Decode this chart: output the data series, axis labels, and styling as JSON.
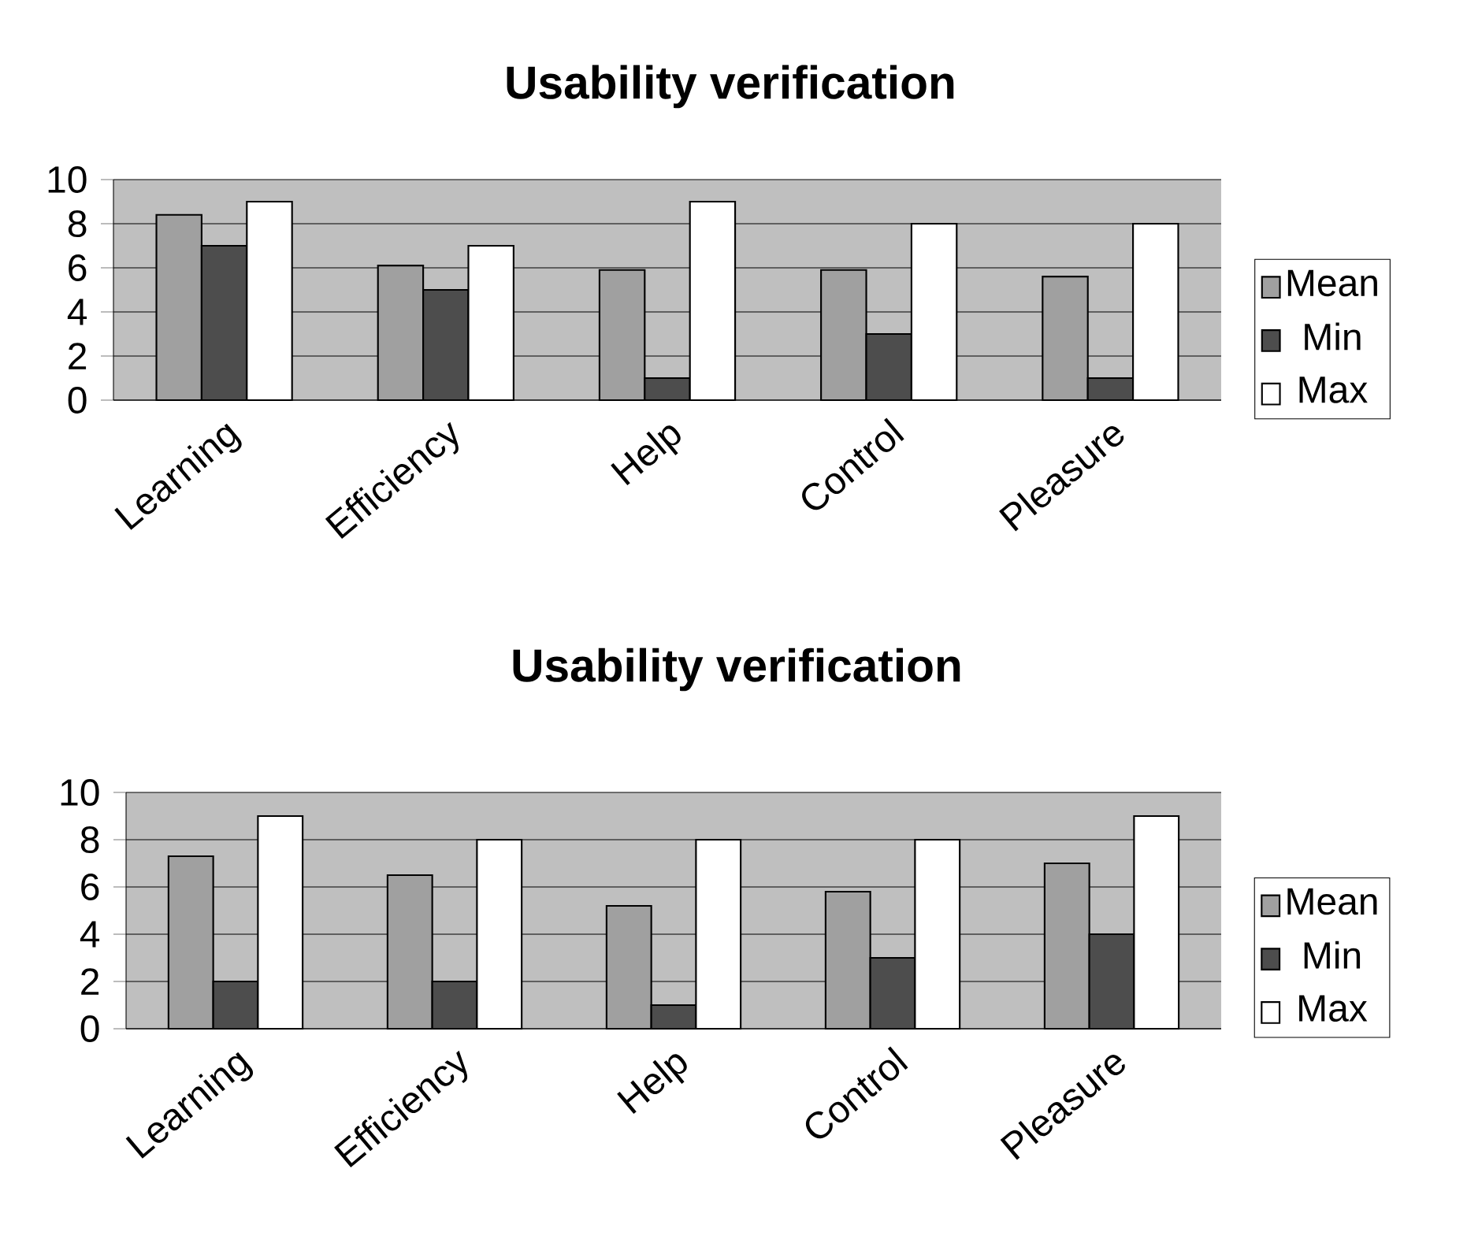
{
  "chart_data": [
    {
      "type": "bar",
      "title": "Usability verification",
      "categories": [
        "Learning",
        "Efficiency",
        "Help",
        "Control",
        "Pleasure"
      ],
      "series": [
        {
          "name": "Mean",
          "color": "#a0a0a0",
          "values": [
            8.4,
            6.1,
            5.9,
            5.9,
            5.6
          ]
        },
        {
          "name": "Min",
          "color": "#4d4d4d",
          "values": [
            7,
            5,
            1,
            3,
            1
          ]
        },
        {
          "name": "Max",
          "color": "#ffffff",
          "values": [
            9,
            7,
            9,
            8,
            8
          ]
        }
      ],
      "ylim": [
        0,
        10
      ],
      "yticks": [
        0,
        2,
        4,
        6,
        8,
        10
      ],
      "grid": "y",
      "legend": "right"
    },
    {
      "type": "bar",
      "title": "Usability verification",
      "categories": [
        "Learning",
        "Efficiency",
        "Help",
        "Control",
        "Pleasure"
      ],
      "series": [
        {
          "name": "Mean",
          "color": "#a0a0a0",
          "values": [
            7.3,
            6.5,
            5.2,
            5.8,
            7.0
          ]
        },
        {
          "name": "Min",
          "color": "#4d4d4d",
          "values": [
            2,
            2,
            1,
            3,
            4
          ]
        },
        {
          "name": "Max",
          "color": "#ffffff",
          "values": [
            9,
            8,
            8,
            8,
            9
          ]
        }
      ],
      "ylim": [
        0,
        10
      ],
      "yticks": [
        0,
        2,
        4,
        6,
        8,
        10
      ],
      "grid": "y",
      "legend": "right"
    }
  ]
}
